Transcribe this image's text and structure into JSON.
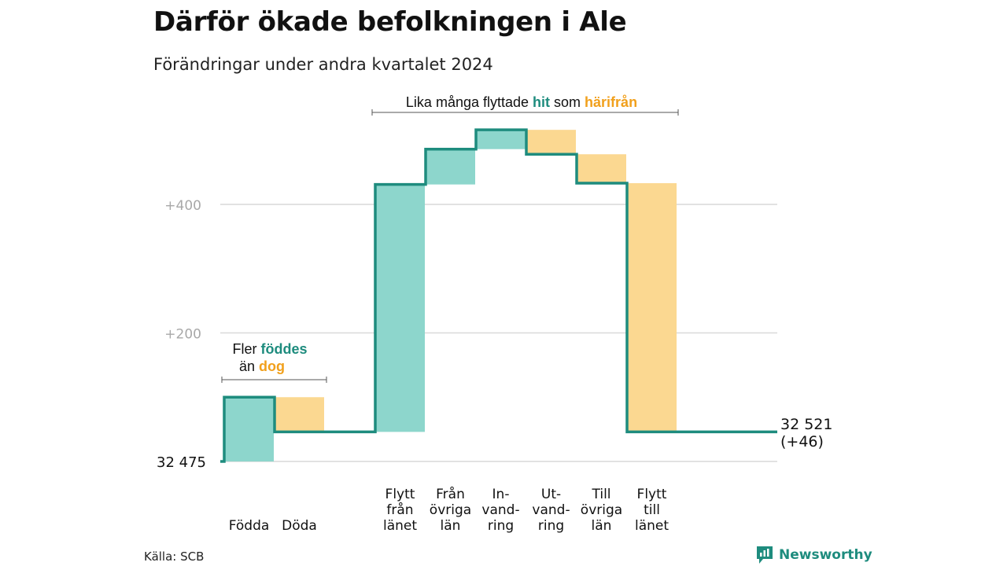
{
  "title": "Därför ökade befolkningen i Ale",
  "subtitle": "Förändringar under andra kvartalet 2024",
  "source": "Källa: SCB",
  "logo_text": "Newsworthy",
  "colors": {
    "increase": "#8dd6cc",
    "decrease": "#fbd891",
    "line": "#1e8c7e",
    "hit": "#1e8c7e",
    "harifran": "#f1a01c"
  },
  "annotations": {
    "births": {
      "pre": "Fler ",
      "hl1": "föddes",
      "line2_pre": "än ",
      "hl2": "dog"
    },
    "migration": {
      "pre": "Lika många flyttade ",
      "hl1": "hit",
      "mid": " som ",
      "hl2": "härifrån"
    }
  },
  "end_label": {
    "line1": "32 521",
    "line2": "(+46)"
  },
  "chart_data": {
    "type": "waterfall",
    "title": "Därför ökade befolkningen i Ale",
    "subtitle": "Förändringar under andra kvartalet 2024",
    "start_value": 32475,
    "start_label": "32  475",
    "end_value": 32521,
    "y_ticks": [
      0,
      200,
      400
    ],
    "y_tick_labels": [
      "32  475",
      "+200",
      "+400"
    ],
    "ylim": [
      0,
      500
    ],
    "steps": [
      {
        "label": "Födda",
        "label_lines": [
          "Födda"
        ],
        "change": 100
      },
      {
        "label": "Döda",
        "label_lines": [
          "Döda"
        ],
        "change": -54
      },
      {
        "label": "Flytt från länet",
        "label_lines": [
          "Flytt",
          "från",
          "länet"
        ],
        "change": 385
      },
      {
        "label": "Från övriga län",
        "label_lines": [
          "Från",
          "övriga",
          "län"
        ],
        "change": 55
      },
      {
        "label": "In-vandring",
        "label_lines": [
          "In-",
          "vand-",
          "ring"
        ],
        "change": 30
      },
      {
        "label": "Ut-vandring",
        "label_lines": [
          "Ut-",
          "vand-",
          "ring"
        ],
        "change": -38
      },
      {
        "label": "Till övriga län",
        "label_lines": [
          "Till",
          "övriga",
          "län"
        ],
        "change": -45
      },
      {
        "label": "Flytt till länet",
        "label_lines": [
          "Flytt",
          "till",
          "länet"
        ],
        "change": -387
      }
    ]
  }
}
